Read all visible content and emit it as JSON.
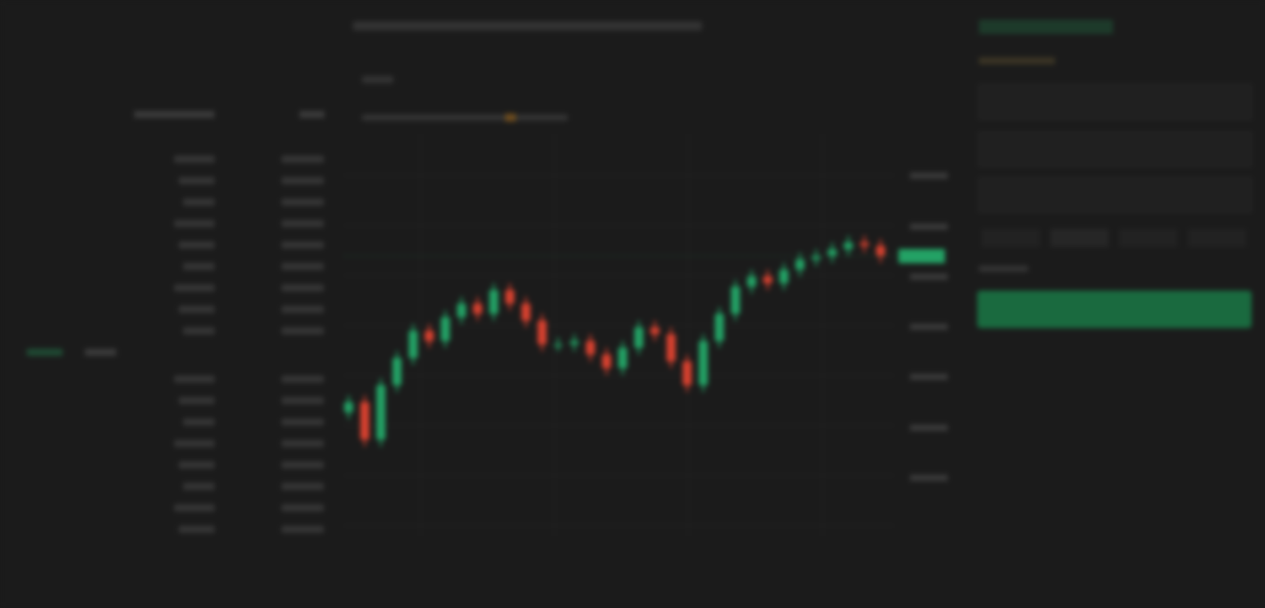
{
  "chart_data": {
    "type": "candlestick",
    "open": [
      26,
      29,
      18,
      34,
      42,
      50,
      47,
      54,
      58,
      55,
      62,
      58,
      53,
      46,
      46,
      47,
      43,
      39,
      45,
      51,
      49,
      41,
      34,
      47,
      55,
      63,
      66,
      64,
      68,
      71,
      72,
      74,
      76,
      75
    ],
    "close": [
      29,
      18,
      34,
      42,
      50,
      47,
      54,
      58,
      55,
      62,
      58,
      53,
      46,
      46,
      47,
      43,
      39,
      45,
      51,
      49,
      41,
      34,
      47,
      55,
      63,
      66,
      64,
      68,
      71,
      72,
      74,
      76,
      75,
      72
    ],
    "high": [
      31,
      31,
      36,
      44,
      52,
      52,
      56,
      60,
      60,
      64,
      64,
      60,
      55,
      48,
      49,
      49,
      45,
      47,
      53,
      53,
      51,
      43,
      49,
      57,
      65,
      68,
      68,
      70,
      73,
      74,
      76,
      78,
      78,
      77
    ],
    "low": [
      24,
      16,
      16,
      32,
      40,
      45,
      45,
      52,
      53,
      53,
      56,
      51,
      44,
      44,
      44,
      41,
      37,
      37,
      43,
      47,
      39,
      32,
      32,
      45,
      53,
      61,
      62,
      62,
      66,
      69,
      70,
      72,
      73,
      70
    ],
    "ylim": [
      0,
      100
    ],
    "up_color": "#23a265",
    "down_color": "#d8412f"
  }
}
